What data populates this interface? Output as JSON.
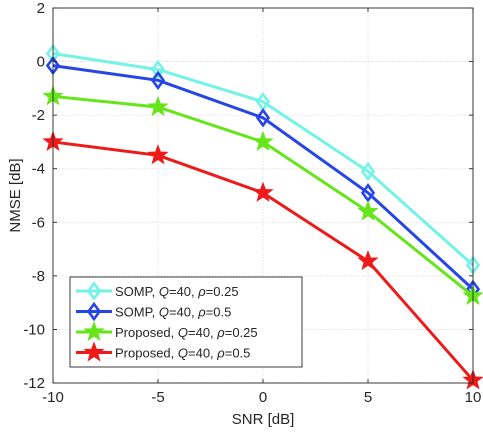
{
  "chart_data": {
    "type": "line",
    "xlabel": "SNR [dB]",
    "ylabel": "NMSE [dB]",
    "x": [
      -10,
      -5,
      0,
      5,
      10
    ],
    "xlim": [
      -10,
      10
    ],
    "ylim": [
      -12,
      2
    ],
    "xticks": [
      -10,
      -5,
      0,
      5,
      10
    ],
    "yticks": [
      2,
      0,
      -2,
      -4,
      -6,
      -8,
      -10,
      -12
    ],
    "xtick_labels": [
      "-10",
      "-5",
      "0",
      "5",
      "10"
    ],
    "ytick_labels": [
      "2",
      "0",
      "-2",
      "-4",
      "-6",
      "-8",
      "-10",
      "-12"
    ],
    "grid": true,
    "legend_position": "lower-left",
    "series": [
      {
        "name": "SOMP, Q=40, ρ=0.25",
        "legend": {
          "prefix": "SOMP, ",
          "q": "Q",
          "q_val": "=40, ",
          "rho": "ρ",
          "rho_val": "=0.25"
        },
        "values": [
          0.3,
          -0.3,
          -1.5,
          -4.1,
          -7.6
        ],
        "color": "#73f2e6",
        "marker": "diamond"
      },
      {
        "name": "SOMP, Q=40, ρ=0.5",
        "legend": {
          "prefix": "SOMP, ",
          "q": "Q",
          "q_val": "=40, ",
          "rho": "ρ",
          "rho_val": "=0.5"
        },
        "values": [
          -0.15,
          -0.7,
          -2.1,
          -4.9,
          -8.5
        ],
        "color": "#2645e6",
        "marker": "diamond"
      },
      {
        "name": "Proposed, Q=40, ρ=0.25",
        "legend": {
          "prefix": "Proposed, ",
          "q": "Q",
          "q_val": "=40, ",
          "rho": "ρ",
          "rho_val": "=0.25"
        },
        "values": [
          -1.3,
          -1.7,
          -3.0,
          -5.6,
          -8.75
        ],
        "color": "#66e61a",
        "marker": "star"
      },
      {
        "name": "Proposed, Q=40, ρ=0.5",
        "legend": {
          "prefix": "Proposed, ",
          "q": "Q",
          "q_val": "=40, ",
          "rho": "ρ",
          "rho_val": "=0.5"
        },
        "values": [
          -3.0,
          -3.5,
          -4.9,
          -7.45,
          -11.9
        ],
        "color": "#ee1a1a",
        "marker": "star"
      }
    ]
  }
}
